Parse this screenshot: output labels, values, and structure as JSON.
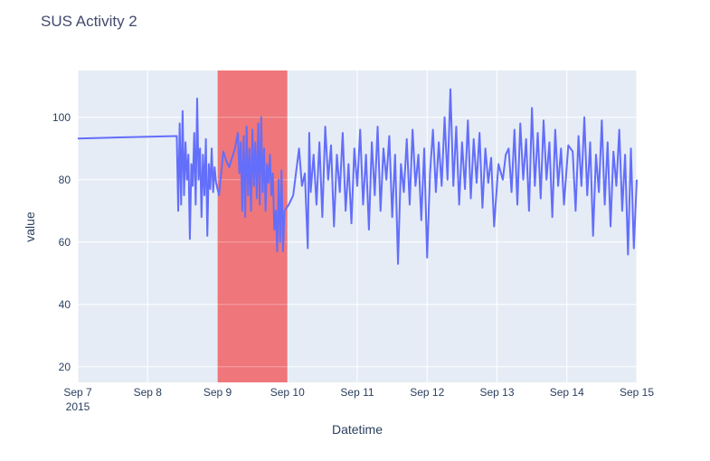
{
  "chart_data": {
    "type": "line",
    "title": "SUS Activity 2",
    "xlabel": "Datetime",
    "ylabel": "value",
    "x_range": [
      "2015-09-07",
      "2015-09-15"
    ],
    "ylim": [
      15,
      115
    ],
    "y_ticks": [
      20,
      40,
      60,
      80,
      100
    ],
    "x_ticks": [
      {
        "date": "2015-09-07",
        "label": "Sep 7",
        "sublabel": "2015"
      },
      {
        "date": "2015-09-08",
        "label": "Sep 8"
      },
      {
        "date": "2015-09-09",
        "label": "Sep 9"
      },
      {
        "date": "2015-09-10",
        "label": "Sep 10"
      },
      {
        "date": "2015-09-11",
        "label": "Sep 11"
      },
      {
        "date": "2015-09-12",
        "label": "Sep 12"
      },
      {
        "date": "2015-09-13",
        "label": "Sep 13"
      },
      {
        "date": "2015-09-14",
        "label": "Sep 14"
      },
      {
        "date": "2015-09-15",
        "label": "Sep 15"
      }
    ],
    "grid": true,
    "colors": {
      "plot_bg": "#e5ecf6",
      "line": "#636efa",
      "highlight": "#ef767a",
      "grid": "#ffffff"
    },
    "highlight_region": {
      "x0": "2015-09-09",
      "x1": "2015-09-10"
    },
    "series": [
      {
        "values": [
          [
            "2015-09-07 00:00",
            93.2
          ],
          [
            "2015-09-08 10:00",
            94.0
          ],
          [
            "2015-09-08 10:30",
            70.0
          ],
          [
            "2015-09-08 11:00",
            98.0
          ],
          [
            "2015-09-08 11:30",
            72.0
          ],
          [
            "2015-09-08 12:00",
            102.0
          ],
          [
            "2015-09-08 12:30",
            75.0
          ],
          [
            "2015-09-08 13:00",
            92.0
          ],
          [
            "2015-09-08 13:30",
            80.0
          ],
          [
            "2015-09-08 14:00",
            88.0
          ],
          [
            "2015-09-08 14:30",
            61.0
          ],
          [
            "2015-09-08 15:00",
            85.0
          ],
          [
            "2015-09-08 15:30",
            78.0
          ],
          [
            "2015-09-08 16:00",
            95.0
          ],
          [
            "2015-09-08 16:30",
            72.0
          ],
          [
            "2015-09-08 17:00",
            106.0
          ],
          [
            "2015-09-08 17:30",
            80.0
          ],
          [
            "2015-09-08 18:00",
            90.0
          ],
          [
            "2015-09-08 18:30",
            68.0
          ],
          [
            "2015-09-08 19:00",
            88.0
          ],
          [
            "2015-09-08 19:30",
            75.0
          ],
          [
            "2015-09-08 20:00",
            93.0
          ],
          [
            "2015-09-08 20:30",
            62.0
          ],
          [
            "2015-09-08 21:00",
            85.0
          ],
          [
            "2015-09-08 21:30",
            77.0
          ],
          [
            "2015-09-08 22:00",
            90.0
          ],
          [
            "2015-09-08 22:30",
            76.0
          ],
          [
            "2015-09-08 23:00",
            84.0
          ],
          [
            "2015-09-08 23:30",
            79.0
          ],
          [
            "2015-09-09 00:30",
            75.0
          ],
          [
            "2015-09-09 02:00",
            89.0
          ],
          [
            "2015-09-09 03:00",
            86.0
          ],
          [
            "2015-09-09 04:00",
            84.0
          ],
          [
            "2015-09-09 06:00",
            90.0
          ],
          [
            "2015-09-09 07:00",
            95.0
          ],
          [
            "2015-09-09 07:30",
            82.0
          ],
          [
            "2015-09-09 08:00",
            92.0
          ],
          [
            "2015-09-09 08:30",
            70.0
          ],
          [
            "2015-09-09 09:00",
            94.0
          ],
          [
            "2015-09-09 09:30",
            68.0
          ],
          [
            "2015-09-09 10:00",
            97.0
          ],
          [
            "2015-09-09 10:30",
            75.0
          ],
          [
            "2015-09-09 11:00",
            90.0
          ],
          [
            "2015-09-09 11:30",
            70.0
          ],
          [
            "2015-09-09 12:00",
            96.0
          ],
          [
            "2015-09-09 12:30",
            78.0
          ],
          [
            "2015-09-09 13:00",
            92.0
          ],
          [
            "2015-09-09 13:30",
            74.0
          ],
          [
            "2015-09-09 14:00",
            98.0
          ],
          [
            "2015-09-09 14:30",
            72.0
          ],
          [
            "2015-09-09 15:00",
            100.0
          ],
          [
            "2015-09-09 15:30",
            76.0
          ],
          [
            "2015-09-09 16:00",
            90.0
          ],
          [
            "2015-09-09 16:30",
            70.0
          ],
          [
            "2015-09-09 17:00",
            85.0
          ],
          [
            "2015-09-09 17:30",
            79.0
          ],
          [
            "2015-09-09 18:00",
            88.0
          ],
          [
            "2015-09-09 18:30",
            75.0
          ],
          [
            "2015-09-09 19:00",
            82.0
          ],
          [
            "2015-09-09 19:30",
            64.0
          ],
          [
            "2015-09-09 20:00",
            70.0
          ],
          [
            "2015-09-09 20:30",
            57.0
          ],
          [
            "2015-09-09 21:00",
            80.0
          ],
          [
            "2015-09-09 21:30",
            60.0
          ],
          [
            "2015-09-09 22:00",
            83.0
          ],
          [
            "2015-09-09 22:30",
            57.0
          ],
          [
            "2015-09-09 23:00",
            70.0
          ],
          [
            "2015-09-10 00:30",
            72.0
          ],
          [
            "2015-09-10 02:00",
            75.0
          ],
          [
            "2015-09-10 04:00",
            90.0
          ],
          [
            "2015-09-10 05:00",
            78.0
          ],
          [
            "2015-09-10 06:00",
            82.0
          ],
          [
            "2015-09-10 07:00",
            58.0
          ],
          [
            "2015-09-10 07:30",
            95.0
          ],
          [
            "2015-09-10 08:00",
            76.0
          ],
          [
            "2015-09-10 09:00",
            88.0
          ],
          [
            "2015-09-10 10:00",
            72.0
          ],
          [
            "2015-09-10 11:00",
            92.0
          ],
          [
            "2015-09-10 12:00",
            68.0
          ],
          [
            "2015-09-10 13:00",
            97.0
          ],
          [
            "2015-09-10 14:00",
            80.0
          ],
          [
            "2015-09-10 15:00",
            91.0
          ],
          [
            "2015-09-10 16:00",
            65.0
          ],
          [
            "2015-09-10 17:00",
            88.0
          ],
          [
            "2015-09-10 18:00",
            76.0
          ],
          [
            "2015-09-10 19:00",
            95.0
          ],
          [
            "2015-09-10 20:00",
            70.0
          ],
          [
            "2015-09-10 21:00",
            85.0
          ],
          [
            "2015-09-10 22:00",
            66.0
          ],
          [
            "2015-09-10 23:00",
            90.0
          ],
          [
            "2015-09-11 00:00",
            78.0
          ],
          [
            "2015-09-11 01:00",
            96.0
          ],
          [
            "2015-09-11 02:00",
            72.0
          ],
          [
            "2015-09-11 03:00",
            88.0
          ],
          [
            "2015-09-11 04:00",
            64.0
          ],
          [
            "2015-09-11 05:00",
            92.0
          ],
          [
            "2015-09-11 06:00",
            75.0
          ],
          [
            "2015-09-11 07:00",
            97.0
          ],
          [
            "2015-09-11 08:00",
            70.0
          ],
          [
            "2015-09-11 09:00",
            90.0
          ],
          [
            "2015-09-11 10:00",
            80.0
          ],
          [
            "2015-09-11 11:00",
            94.0
          ],
          [
            "2015-09-11 12:00",
            68.0
          ],
          [
            "2015-09-11 13:00",
            88.0
          ],
          [
            "2015-09-11 14:00",
            53.0
          ],
          [
            "2015-09-11 15:00",
            85.0
          ],
          [
            "2015-09-11 16:00",
            76.0
          ],
          [
            "2015-09-11 17:00",
            93.0
          ],
          [
            "2015-09-11 18:00",
            72.0
          ],
          [
            "2015-09-11 19:00",
            96.0
          ],
          [
            "2015-09-11 20:00",
            78.0
          ],
          [
            "2015-09-11 21:00",
            88.0
          ],
          [
            "2015-09-11 22:00",
            67.0
          ],
          [
            "2015-09-11 23:00",
            90.0
          ],
          [
            "2015-09-12 00:00",
            55.0
          ],
          [
            "2015-09-12 01:00",
            82.0
          ],
          [
            "2015-09-12 02:00",
            96.0
          ],
          [
            "2015-09-12 03:00",
            76.0
          ],
          [
            "2015-09-12 04:00",
            92.0
          ],
          [
            "2015-09-12 05:00",
            78.0
          ],
          [
            "2015-09-12 06:00",
            100.0
          ],
          [
            "2015-09-12 07:00",
            80.0
          ],
          [
            "2015-09-12 08:00",
            109.0
          ],
          [
            "2015-09-12 09:00",
            78.0
          ],
          [
            "2015-09-12 10:00",
            97.0
          ],
          [
            "2015-09-12 11:00",
            72.0
          ],
          [
            "2015-09-12 12:00",
            92.0
          ],
          [
            "2015-09-12 13:00",
            77.0
          ],
          [
            "2015-09-12 14:00",
            99.0
          ],
          [
            "2015-09-12 15:00",
            74.0
          ],
          [
            "2015-09-12 16:00",
            93.0
          ],
          [
            "2015-09-12 17:00",
            79.0
          ],
          [
            "2015-09-12 18:00",
            95.0
          ],
          [
            "2015-09-12 19:00",
            71.0
          ],
          [
            "2015-09-12 20:00",
            90.0
          ],
          [
            "2015-09-12 21:00",
            79.0
          ],
          [
            "2015-09-12 22:00",
            87.0
          ],
          [
            "2015-09-12 23:00",
            65.0
          ],
          [
            "2015-09-13 00:30",
            85.0
          ],
          [
            "2015-09-13 02:00",
            80.0
          ],
          [
            "2015-09-13 03:00",
            88.0
          ],
          [
            "2015-09-13 04:00",
            90.0
          ],
          [
            "2015-09-13 05:00",
            76.0
          ],
          [
            "2015-09-13 06:00",
            96.0
          ],
          [
            "2015-09-13 07:00",
            72.0
          ],
          [
            "2015-09-13 08:00",
            98.0
          ],
          [
            "2015-09-13 09:00",
            80.0
          ],
          [
            "2015-09-13 10:00",
            93.0
          ],
          [
            "2015-09-13 11:00",
            70.0
          ],
          [
            "2015-09-13 12:00",
            103.0
          ],
          [
            "2015-09-13 13:00",
            78.0
          ],
          [
            "2015-09-13 14:00",
            95.0
          ],
          [
            "2015-09-13 15:00",
            74.0
          ],
          [
            "2015-09-13 16:00",
            99.0
          ],
          [
            "2015-09-13 17:00",
            80.0
          ],
          [
            "2015-09-13 18:00",
            92.0
          ],
          [
            "2015-09-13 19:00",
            68.0
          ],
          [
            "2015-09-13 20:00",
            96.0
          ],
          [
            "2015-09-13 21:00",
            78.0
          ],
          [
            "2015-09-13 22:00",
            90.0
          ],
          [
            "2015-09-13 23:00",
            72.0
          ],
          [
            "2015-09-14 00:30",
            91.0
          ],
          [
            "2015-09-14 02:00",
            89.0
          ],
          [
            "2015-09-14 03:00",
            70.0
          ],
          [
            "2015-09-14 04:00",
            94.0
          ],
          [
            "2015-09-14 05:00",
            78.0
          ],
          [
            "2015-09-14 06:00",
            100.0
          ],
          [
            "2015-09-14 07:00",
            75.0
          ],
          [
            "2015-09-14 08:00",
            92.0
          ],
          [
            "2015-09-14 09:00",
            62.0
          ],
          [
            "2015-09-14 10:00",
            88.0
          ],
          [
            "2015-09-14 11:00",
            76.0
          ],
          [
            "2015-09-14 12:00",
            99.0
          ],
          [
            "2015-09-14 13:00",
            72.0
          ],
          [
            "2015-09-14 14:00",
            92.0
          ],
          [
            "2015-09-14 15:00",
            65.0
          ],
          [
            "2015-09-14 16:00",
            89.0
          ],
          [
            "2015-09-14 17:00",
            78.0
          ],
          [
            "2015-09-14 18:00",
            96.0
          ],
          [
            "2015-09-14 19:00",
            70.0
          ],
          [
            "2015-09-14 20:00",
            88.0
          ],
          [
            "2015-09-14 21:00",
            56.0
          ],
          [
            "2015-09-14 22:00",
            90.0
          ],
          [
            "2015-09-14 23:00",
            58.0
          ],
          [
            "2015-09-15 00:00",
            80.0
          ]
        ]
      }
    ]
  }
}
